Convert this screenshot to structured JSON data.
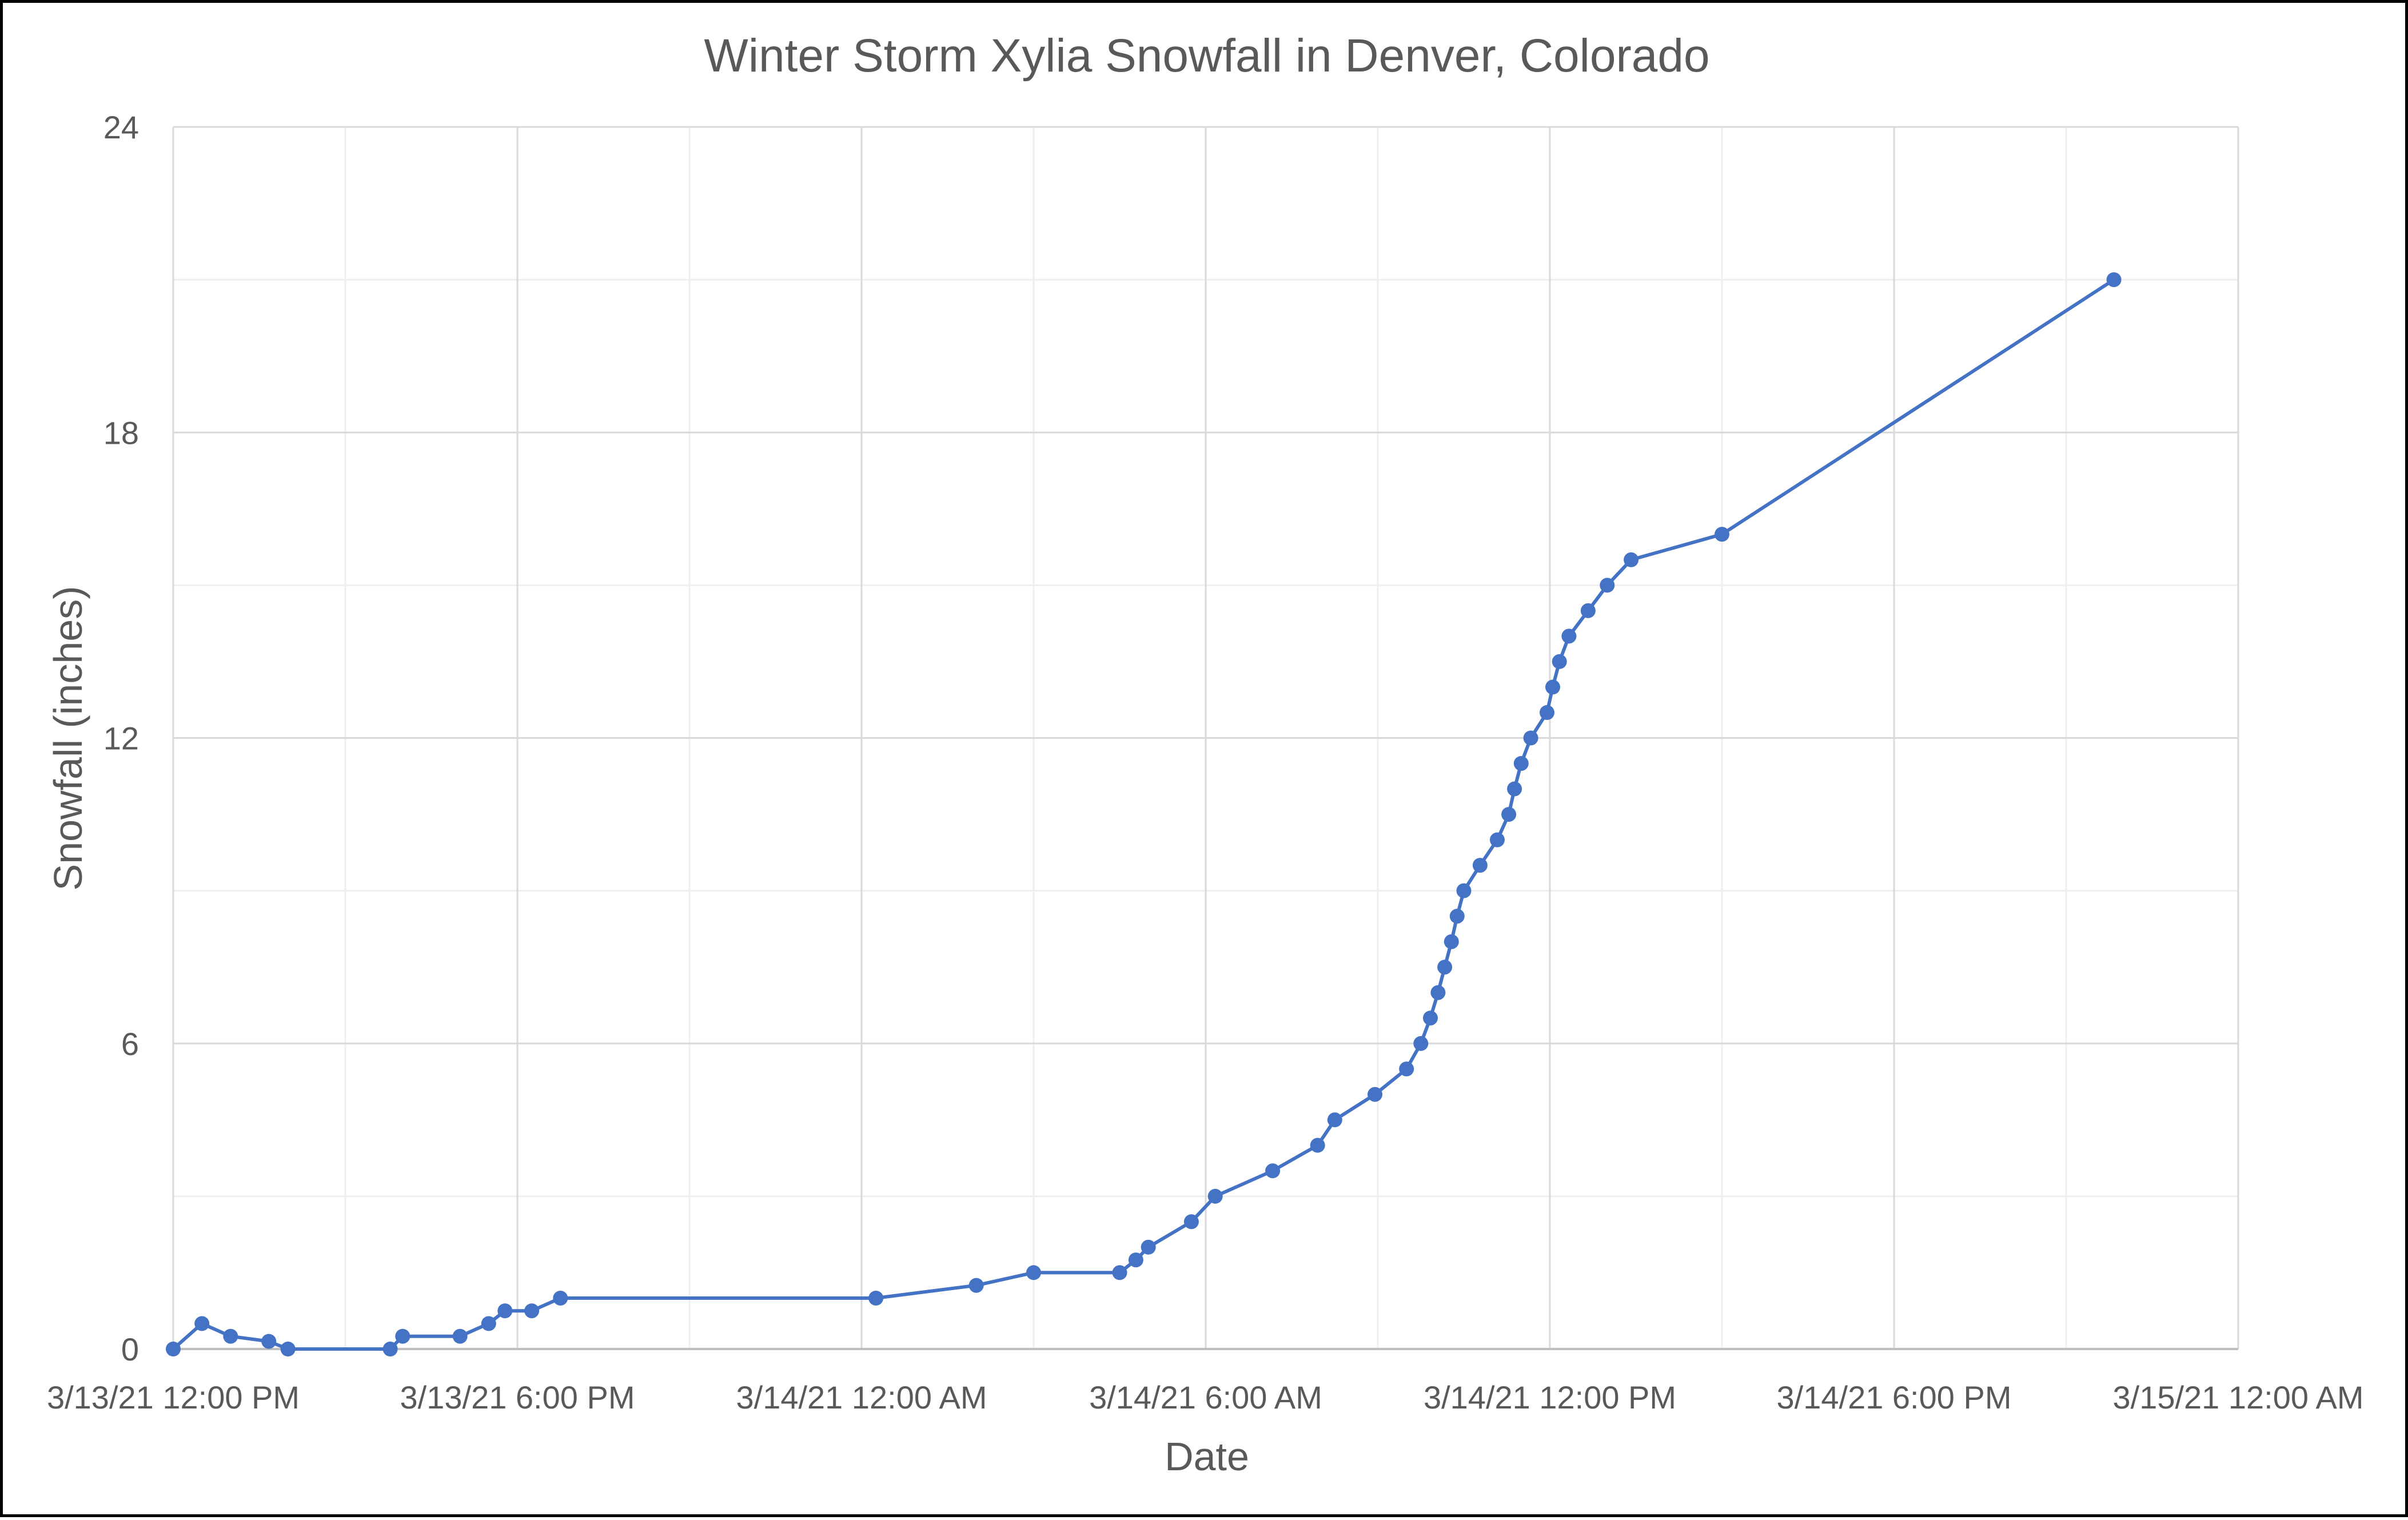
{
  "chart_data": {
    "type": "line",
    "title": "Winter Storm Xylia Snowfall in Denver, Colorado",
    "xlabel": "Date",
    "ylabel": "Snowfall (inches)",
    "xlim": [
      "3/13/21 12:00 PM",
      "3/15/21 12:00 AM"
    ],
    "ylim": [
      0,
      24
    ],
    "y_major_ticks": [
      0,
      6,
      12,
      18,
      24
    ],
    "y_minor_step": 3,
    "x_major_tick_labels": [
      "3/13/21 12:00 PM",
      "3/13/21 6:00 PM",
      "3/14/21 12:00 AM",
      "3/14/21 6:00 AM",
      "3/14/21 12:00 PM",
      "3/14/21 6:00 PM",
      "3/15/21 12:00 AM"
    ],
    "x_minor_step_hours": 3,
    "grid": true,
    "legend": "none",
    "series": [
      {
        "color": "#4472c4",
        "marker": "circle",
        "points": [
          {
            "x": "3/13/21 12:00 PM",
            "y": 0
          },
          {
            "x": "3/13/21 12:30 PM",
            "y": 0.5
          },
          {
            "x": "3/13/21 1:00 PM",
            "y": 0.25
          },
          {
            "x": "3/13/21 1:40 PM",
            "y": 0.15
          },
          {
            "x": "3/13/21 2:00 PM",
            "y": 0
          },
          {
            "x": "3/13/21 3:47 PM",
            "y": 0
          },
          {
            "x": "3/13/21 4:00 PM",
            "y": 0.25
          },
          {
            "x": "3/13/21 5:00 PM",
            "y": 0.25
          },
          {
            "x": "3/13/21 5:30 PM",
            "y": 0.5
          },
          {
            "x": "3/13/21 5:47 PM",
            "y": 0.75
          },
          {
            "x": "3/13/21 6:15 PM",
            "y": 0.75
          },
          {
            "x": "3/13/21 6:45 PM",
            "y": 1.0
          },
          {
            "x": "3/14/21 12:15 AM",
            "y": 1.0
          },
          {
            "x": "3/14/21 2:00 AM",
            "y": 1.25
          },
          {
            "x": "3/14/21 3:00 AM",
            "y": 1.5
          },
          {
            "x": "3/14/21 4:30 AM",
            "y": 1.5
          },
          {
            "x": "3/14/21 4:47 AM",
            "y": 1.75
          },
          {
            "x": "3/14/21 5:00 AM",
            "y": 2.0
          },
          {
            "x": "3/14/21 5:45 AM",
            "y": 2.5
          },
          {
            "x": "3/14/21 6:10 AM",
            "y": 3.0
          },
          {
            "x": "3/14/21 7:10 AM",
            "y": 3.5
          },
          {
            "x": "3/14/21 7:57 AM",
            "y": 4.0
          },
          {
            "x": "3/14/21 8:15 AM",
            "y": 4.5
          },
          {
            "x": "3/14/21 8:57 AM",
            "y": 5.0
          },
          {
            "x": "3/14/21 9:30 AM",
            "y": 5.5
          },
          {
            "x": "3/14/21 9:45 AM",
            "y": 6.0
          },
          {
            "x": "3/14/21 9:55 AM",
            "y": 6.5
          },
          {
            "x": "3/14/21 10:03 AM",
            "y": 7.0
          },
          {
            "x": "3/14/21 10:10 AM",
            "y": 7.5
          },
          {
            "x": "3/14/21 10:17 AM",
            "y": 8.0
          },
          {
            "x": "3/14/21 10:23 AM",
            "y": 8.5
          },
          {
            "x": "3/14/21 10:30 AM",
            "y": 9.0
          },
          {
            "x": "3/14/21 10:47 AM",
            "y": 9.5
          },
          {
            "x": "3/14/21 11:05 AM",
            "y": 10.0
          },
          {
            "x": "3/14/21 11:17 AM",
            "y": 10.5
          },
          {
            "x": "3/14/21 11:23 AM",
            "y": 11.0
          },
          {
            "x": "3/14/21 11:30 AM",
            "y": 11.5
          },
          {
            "x": "3/14/21 11:40 AM",
            "y": 12.0
          },
          {
            "x": "3/14/21 11:57 AM",
            "y": 12.5
          },
          {
            "x": "3/14/21 12:03 PM",
            "y": 13.0
          },
          {
            "x": "3/14/21 12:10 PM",
            "y": 13.5
          },
          {
            "x": "3/14/21 12:20 PM",
            "y": 14.0
          },
          {
            "x": "3/14/21 12:40 PM",
            "y": 14.5
          },
          {
            "x": "3/14/21 1:00 PM",
            "y": 15.0
          },
          {
            "x": "3/14/21 1:25 PM",
            "y": 15.5
          },
          {
            "x": "3/14/21 3:00 PM",
            "y": 16.0
          },
          {
            "x": "3/14/21 9:50 PM",
            "y": 21.0
          }
        ]
      }
    ]
  }
}
